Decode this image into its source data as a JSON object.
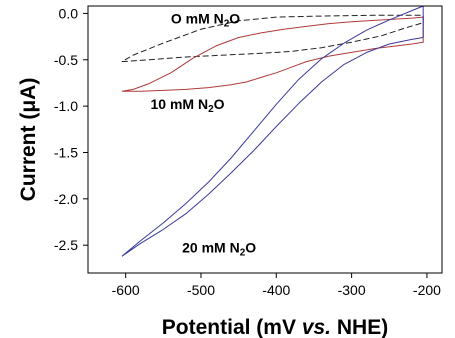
{
  "chart_data": {
    "type": "line",
    "xlabel_parts": [
      "Potential (mV ",
      "vs.",
      " NHE)"
    ],
    "ylabel": "Current (μA)",
    "xlim": [
      -650,
      -180
    ],
    "ylim": [
      -2.8,
      0.08
    ],
    "xticks": [
      -600,
      -500,
      -400,
      -300,
      -200
    ],
    "yticks": [
      0.0,
      -0.5,
      -1.0,
      -1.5,
      -2.0,
      -2.5
    ],
    "grid": false,
    "series": [
      {
        "name_parts": [
          "O mM N",
          "2",
          "O"
        ],
        "color": "#222222",
        "dash": "dashed",
        "label_at": [
          -540,
          -0.11
        ],
        "x": [
          -605,
          -570,
          -520,
          -470,
          -420,
          -380,
          -340,
          -300,
          -260,
          -230,
          -205,
          -205,
          -230,
          -270,
          -310,
          -350,
          -400,
          -450,
          -500,
          -550,
          -590,
          -605
        ],
        "y": [
          -0.52,
          -0.5,
          -0.47,
          -0.45,
          -0.43,
          -0.41,
          -0.37,
          -0.31,
          -0.24,
          -0.16,
          -0.1,
          -0.02,
          -0.02,
          -0.02,
          -0.025,
          -0.03,
          -0.04,
          -0.08,
          -0.17,
          -0.32,
          -0.45,
          -0.52
        ]
      },
      {
        "name_parts": [
          "10 mM N",
          "2",
          "O"
        ],
        "color": "#b03a3a",
        "dash": "solid",
        "label_at": [
          -567,
          -1.03
        ],
        "x": [
          -605,
          -580,
          -550,
          -520,
          -490,
          -460,
          -440,
          -420,
          -400,
          -380,
          -360,
          -330,
          -300,
          -270,
          -240,
          -220,
          -205,
          -205,
          -220,
          -240,
          -270,
          -300,
          -330,
          -360,
          -390,
          -420,
          -450,
          -480,
          -510,
          -540,
          -570,
          -590,
          -605
        ],
        "y": [
          -0.84,
          -0.84,
          -0.83,
          -0.82,
          -0.8,
          -0.77,
          -0.74,
          -0.69,
          -0.64,
          -0.58,
          -0.52,
          -0.46,
          -0.42,
          -0.38,
          -0.35,
          -0.33,
          -0.31,
          -0.04,
          -0.05,
          -0.06,
          -0.075,
          -0.09,
          -0.11,
          -0.14,
          -0.17,
          -0.21,
          -0.26,
          -0.35,
          -0.48,
          -0.64,
          -0.76,
          -0.82,
          -0.84
        ]
      },
      {
        "name_parts": [
          "20 mM N",
          "2",
          "O"
        ],
        "color": "#3a3a9c",
        "dash": "solid",
        "label_at": [
          -525,
          -2.58
        ],
        "x": [
          -605,
          -580,
          -550,
          -520,
          -490,
          -460,
          -430,
          -400,
          -370,
          -340,
          -310,
          -280,
          -250,
          -220,
          -205,
          -205,
          -220,
          -250,
          -280,
          -310,
          -340,
          -370,
          -400,
          -430,
          -460,
          -490,
          -520,
          -550,
          -580,
          -605
        ],
        "y": [
          -2.62,
          -2.48,
          -2.33,
          -2.16,
          -1.95,
          -1.72,
          -1.48,
          -1.22,
          -0.97,
          -0.74,
          -0.55,
          -0.42,
          -0.33,
          -0.28,
          -0.26,
          0.08,
          0.03,
          -0.07,
          -0.18,
          -0.32,
          -0.49,
          -0.71,
          -0.98,
          -1.27,
          -1.56,
          -1.82,
          -2.05,
          -2.26,
          -2.45,
          -2.62
        ]
      }
    ]
  }
}
